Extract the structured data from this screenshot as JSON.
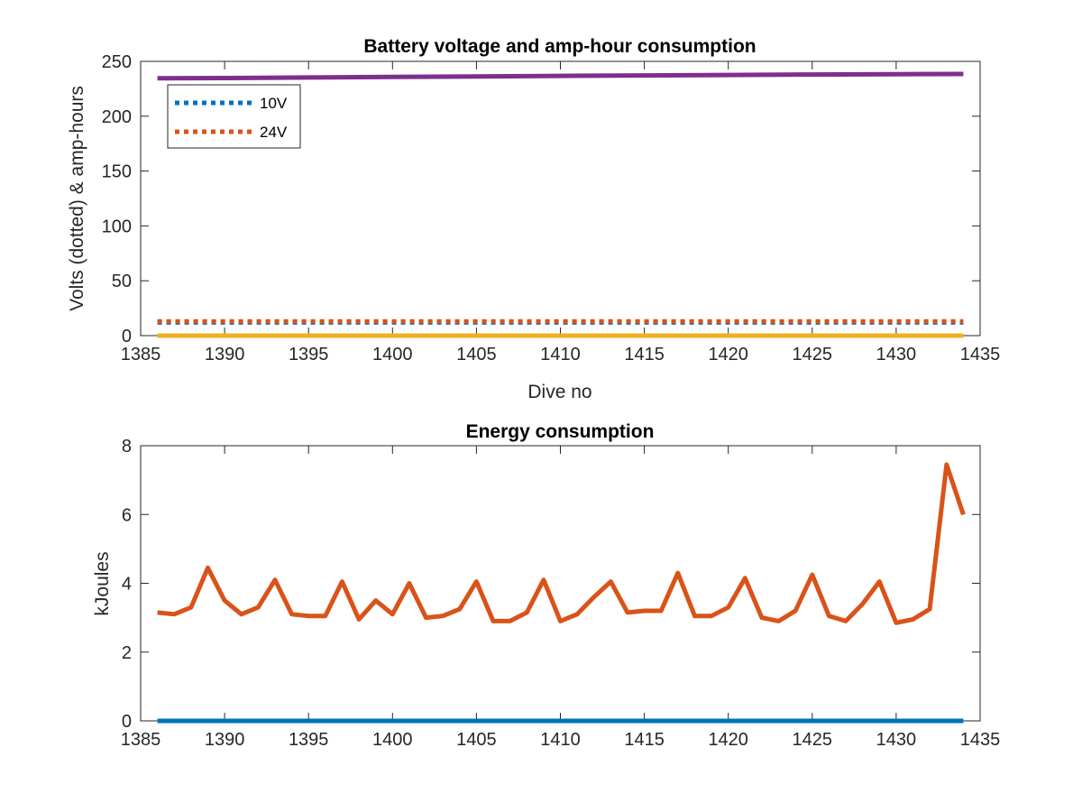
{
  "chart_data": [
    {
      "type": "line",
      "title": "Battery voltage and amp-hour consumption",
      "xlabel": "Dive no",
      "ylabel": "Volts (dotted) & amp-hours",
      "xlim": [
        1385,
        1435
      ],
      "ylim": [
        0,
        250
      ],
      "xticks": [
        1385,
        1390,
        1395,
        1400,
        1405,
        1410,
        1415,
        1420,
        1425,
        1430,
        1435
      ],
      "yticks": [
        0,
        50,
        100,
        150,
        200,
        250
      ],
      "grid": false,
      "legend_position": "top-left",
      "series": [
        {
          "name": "10V",
          "style": "dotted",
          "color": "#0072BD",
          "x": [
            1386,
            1434
          ],
          "y": [
            12,
            12
          ]
        },
        {
          "name": "24V",
          "style": "dotted",
          "color": "#D95319",
          "x": [
            1386,
            1434
          ],
          "y": [
            13,
            13
          ]
        },
        {
          "style": "solid",
          "color": "#EDB120",
          "x": [
            1386,
            1434
          ],
          "y": [
            0,
            0
          ]
        },
        {
          "style": "solid",
          "color": "#7E2F8E",
          "x": [
            1386,
            1390,
            1395,
            1400,
            1405,
            1410,
            1415,
            1420,
            1425,
            1430,
            1434
          ],
          "y": [
            234.5,
            234.8,
            235.3,
            235.8,
            236.3,
            236.8,
            237.2,
            237.6,
            238.0,
            238.3,
            238.5
          ]
        }
      ]
    },
    {
      "type": "line",
      "title": "Energy consumption",
      "xlabel": "",
      "ylabel": "kJoules",
      "xlim": [
        1385,
        1435
      ],
      "ylim": [
        0,
        8
      ],
      "xticks": [
        1385,
        1390,
        1395,
        1400,
        1405,
        1410,
        1415,
        1420,
        1425,
        1430,
        1435
      ],
      "yticks": [
        0,
        2,
        4,
        6,
        8
      ],
      "grid": false,
      "series": [
        {
          "style": "solid",
          "color": "#0072BD",
          "x": [
            1386,
            1434
          ],
          "y": [
            0,
            0
          ]
        },
        {
          "style": "solid",
          "color": "#D95319",
          "x": [
            1386,
            1387,
            1388,
            1389,
            1390,
            1391,
            1392,
            1393,
            1394,
            1395,
            1396,
            1397,
            1398,
            1399,
            1400,
            1401,
            1402,
            1403,
            1404,
            1405,
            1406,
            1407,
            1408,
            1409,
            1410,
            1411,
            1412,
            1413,
            1414,
            1415,
            1416,
            1417,
            1418,
            1419,
            1420,
            1421,
            1422,
            1423,
            1424,
            1425,
            1426,
            1427,
            1428,
            1429,
            1430,
            1431,
            1432,
            1433,
            1434
          ],
          "y": [
            3.15,
            3.1,
            3.3,
            4.45,
            3.5,
            3.1,
            3.3,
            4.1,
            3.1,
            3.05,
            3.05,
            4.05,
            2.95,
            3.5,
            3.1,
            4.0,
            3.0,
            3.05,
            3.25,
            4.05,
            2.9,
            2.9,
            3.15,
            4.1,
            2.9,
            3.1,
            3.6,
            4.05,
            3.15,
            3.2,
            3.2,
            4.3,
            3.05,
            3.05,
            3.3,
            4.15,
            3.0,
            2.9,
            3.2,
            4.25,
            3.05,
            2.9,
            3.4,
            4.05,
            2.85,
            2.95,
            3.25,
            7.45,
            6.0
          ]
        }
      ]
    }
  ]
}
